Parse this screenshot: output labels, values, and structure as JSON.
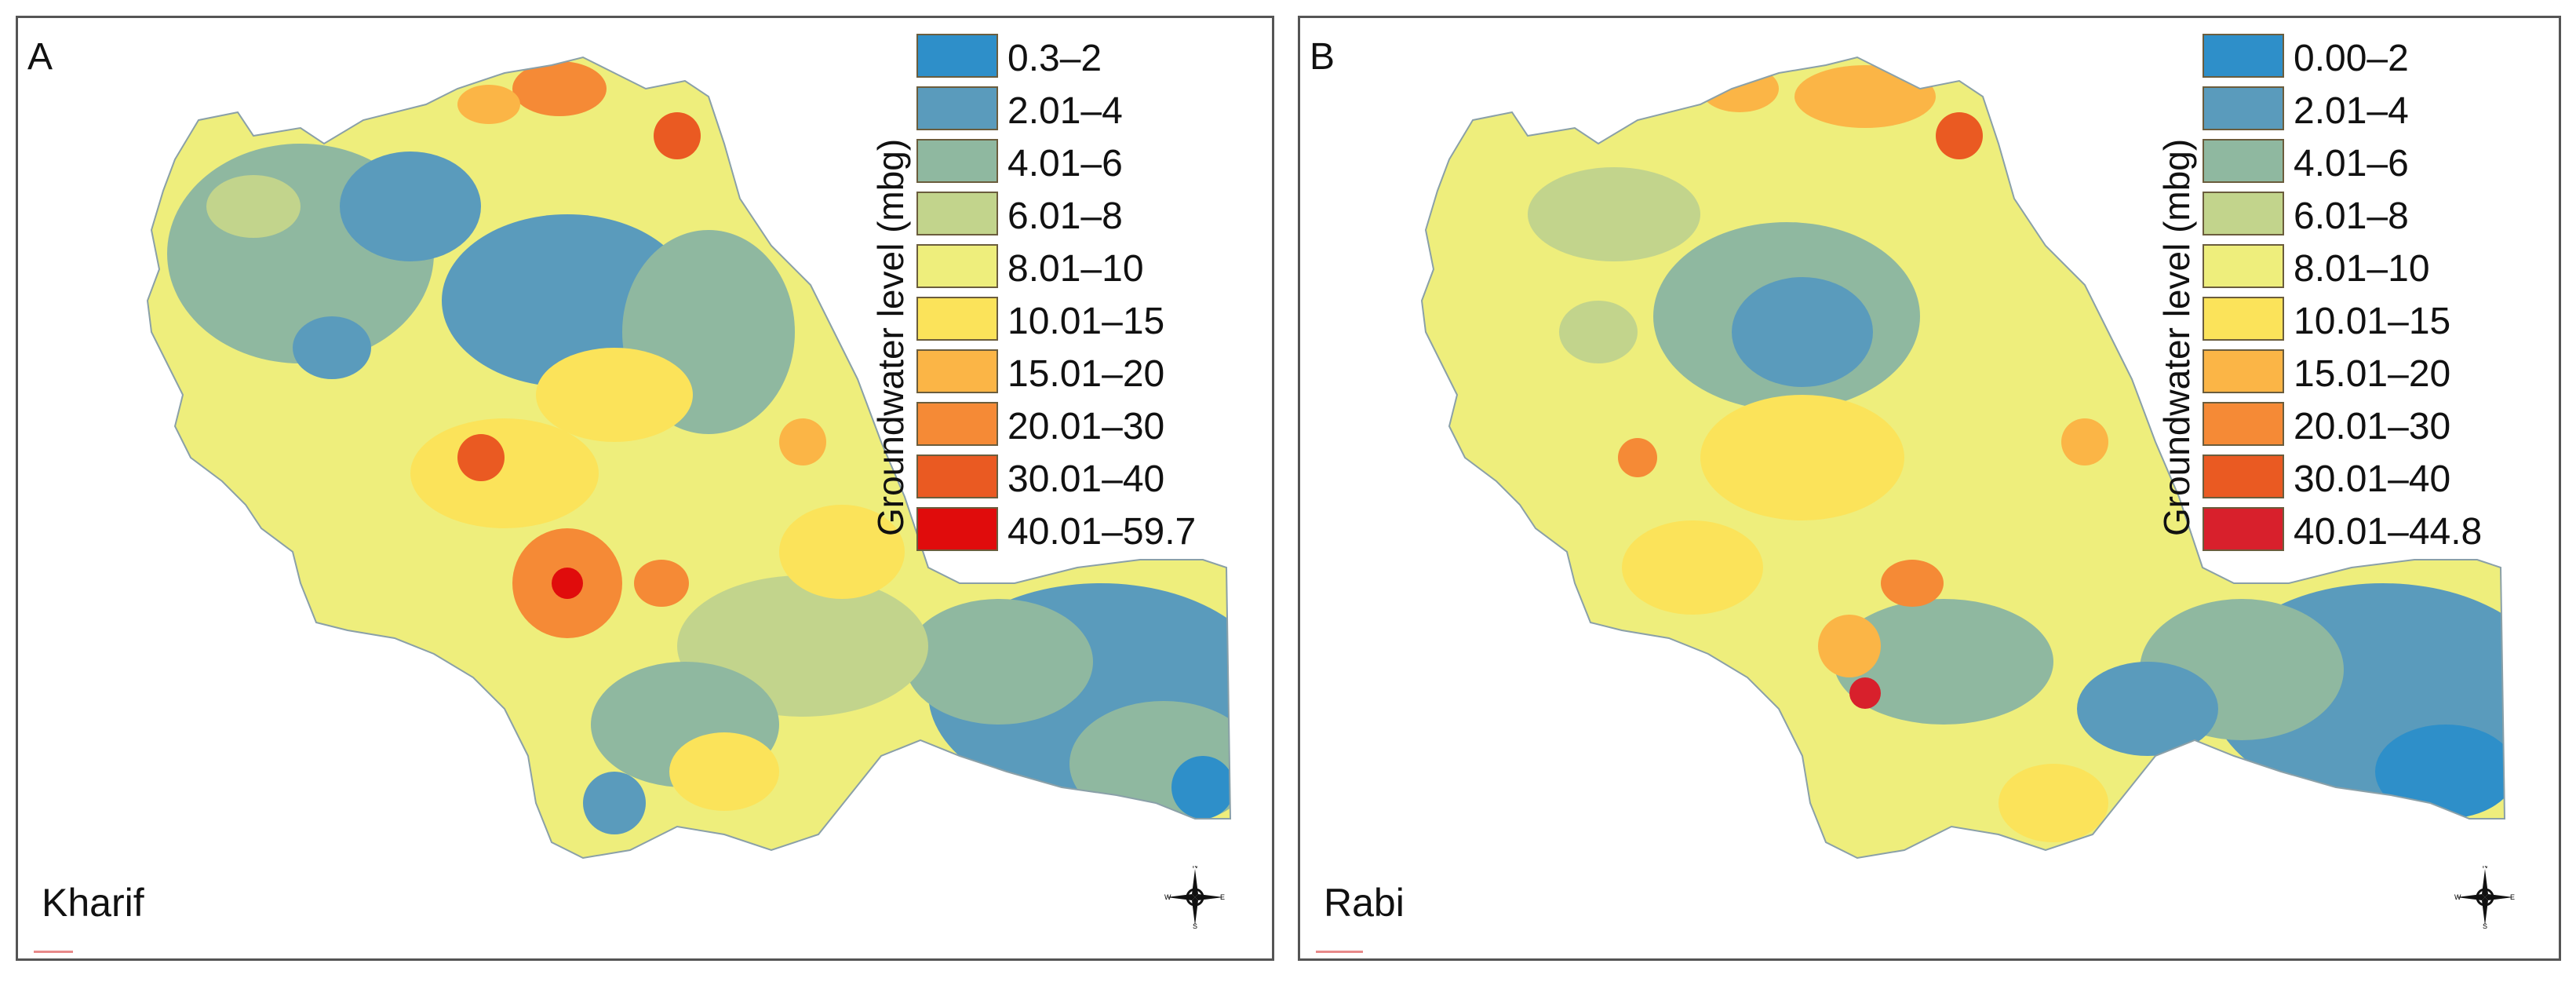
{
  "panels": [
    {
      "letter": "A",
      "season": "Kharif",
      "legend_title": "Groundwater level (mbg)",
      "legend": [
        {
          "label": "0.3–2",
          "color": "#2e8fc9"
        },
        {
          "label": "2.01–4",
          "color": "#5a9bbc"
        },
        {
          "label": "4.01–6",
          "color": "#8fb8a0"
        },
        {
          "label": "6.01–8",
          "color": "#c2d48c"
        },
        {
          "label": "8.01–10",
          "color": "#eeee7c"
        },
        {
          "label": "10.01–15",
          "color": "#fbe35a"
        },
        {
          "label": "15.01–20",
          "color": "#fbb546"
        },
        {
          "label": "20.01–30",
          "color": "#f58a36"
        },
        {
          "label": "30.01–40",
          "color": "#ea5a22"
        },
        {
          "label": "40.01–59.7",
          "color": "#e00c0c"
        }
      ],
      "compass": {
        "n": "N",
        "s": "S",
        "e": "E",
        "w": "W"
      }
    },
    {
      "letter": "B",
      "season": "Rabi",
      "legend_title": "Groundwater level (mbg)",
      "legend": [
        {
          "label": "0.00–2",
          "color": "#2e8fc9"
        },
        {
          "label": "2.01–4",
          "color": "#5a9bbc"
        },
        {
          "label": "4.01–6",
          "color": "#8fb8a0"
        },
        {
          "label": "6.01–8",
          "color": "#c2d48c"
        },
        {
          "label": "8.01–10",
          "color": "#eeee7c"
        },
        {
          "label": "10.01–15",
          "color": "#fbe35a"
        },
        {
          "label": "15.01–20",
          "color": "#fbb546"
        },
        {
          "label": "20.01–30",
          "color": "#f58a36"
        },
        {
          "label": "30.01–40",
          "color": "#ea5a22"
        },
        {
          "label": "40.01–44.8",
          "color": "#d8202c"
        }
      ],
      "compass": {
        "n": "N",
        "s": "S",
        "e": "E",
        "w": "W"
      }
    }
  ]
}
